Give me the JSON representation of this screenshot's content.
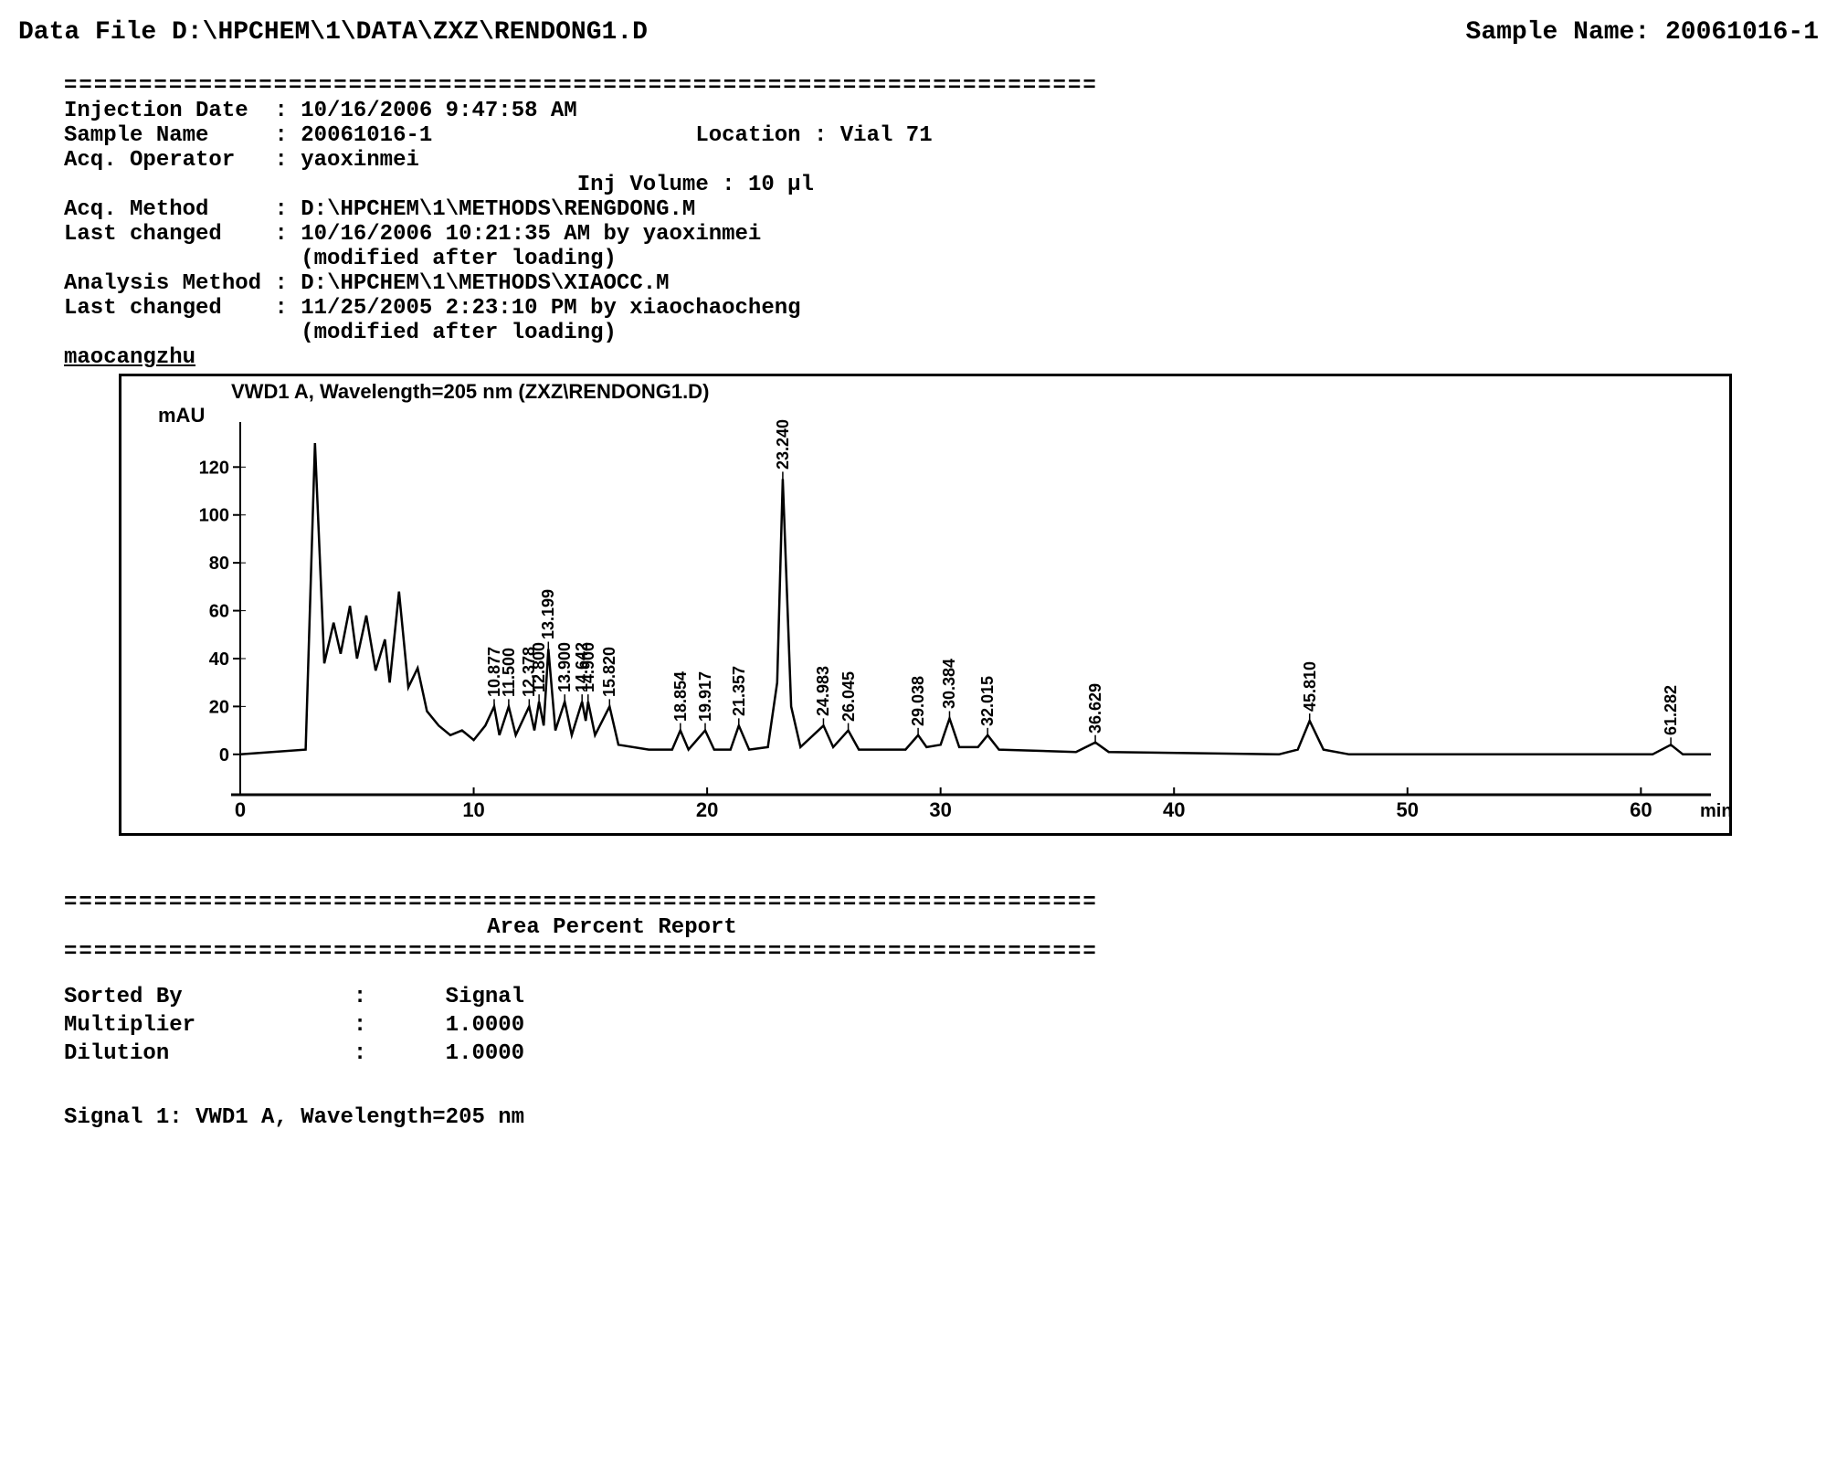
{
  "header": {
    "data_file_label": "Data File",
    "data_file": "D:\\HPCHEM\\1\\DATA\\ZXZ\\RENDONG1.D",
    "sample_name_label": "Sample Name:",
    "sample_name": "20061016-1"
  },
  "meta": {
    "injection_date_label": "Injection Date",
    "injection_date": "10/16/2006 9:47:58 AM",
    "sample_name_label": "Sample Name",
    "sample_name": "20061016-1",
    "location_label": "Location :",
    "location": "Vial 71",
    "acq_operator_label": "Acq. Operator",
    "acq_operator": "yaoxinmei",
    "inj_volume_label": "Inj Volume :",
    "inj_volume": "10 µl",
    "acq_method_label": "Acq. Method",
    "acq_method": "D:\\HPCHEM\\1\\METHODS\\RENGDONG.M",
    "last_changed_label": "Last changed",
    "last_changed_acq": "10/16/2006 10:21:35 AM by yaoxinmei",
    "modified_note": "(modified after loading)",
    "analysis_method_label": "Analysis Method",
    "analysis_method": "D:\\HPCHEM\\1\\METHODS\\XIAOCC.M",
    "last_changed_anl": "11/25/2005 2:23:10 PM by xiaochaocheng",
    "footer_tag": "maocangzhu"
  },
  "chart": {
    "title": "VWD1 A, Wavelength=205 nm (ZXZ\\RENDONG1.D)",
    "y_unit": "mAU",
    "x_unit": "min",
    "ylim": [
      -10,
      135
    ],
    "xlim": [
      0,
      63
    ],
    "yticks": [
      0,
      20,
      40,
      60,
      80,
      100,
      120
    ],
    "xticks": [
      0,
      10,
      20,
      30,
      40,
      50,
      60
    ],
    "line_color": "#000000",
    "background": "#ffffff",
    "border_color": "#000000",
    "peak_labels": [
      {
        "t": 10.877,
        "h": 20
      },
      {
        "t": 11.5,
        "h": 20
      },
      {
        "t": 12.378,
        "h": 20
      },
      {
        "t": 12.8,
        "h": 22
      },
      {
        "t": 13.199,
        "h": 44
      },
      {
        "t": 13.9,
        "h": 22
      },
      {
        "t": 14.642,
        "h": 22
      },
      {
        "t": 14.9,
        "h": 22
      },
      {
        "t": 15.82,
        "h": 20
      },
      {
        "t": 18.854,
        "h": 10
      },
      {
        "t": 19.917,
        "h": 10
      },
      {
        "t": 21.357,
        "h": 12
      },
      {
        "t": 23.24,
        "h": 115
      },
      {
        "t": 24.983,
        "h": 12
      },
      {
        "t": 26.045,
        "h": 10
      },
      {
        "t": 29.038,
        "h": 8
      },
      {
        "t": 30.384,
        "h": 15
      },
      {
        "t": 32.015,
        "h": 8
      },
      {
        "t": 36.629,
        "h": 5
      },
      {
        "t": 45.81,
        "h": 14
      },
      {
        "t": 61.282,
        "h": 4
      }
    ],
    "baseline": [
      {
        "t": 0,
        "y": 0
      },
      {
        "t": 2.8,
        "y": 2
      },
      {
        "t": 3.2,
        "y": 130
      },
      {
        "t": 3.6,
        "y": 38
      },
      {
        "t": 4.0,
        "y": 55
      },
      {
        "t": 4.3,
        "y": 42
      },
      {
        "t": 4.7,
        "y": 62
      },
      {
        "t": 5.0,
        "y": 40
      },
      {
        "t": 5.4,
        "y": 58
      },
      {
        "t": 5.8,
        "y": 35
      },
      {
        "t": 6.2,
        "y": 48
      },
      {
        "t": 6.4,
        "y": 30
      },
      {
        "t": 6.8,
        "y": 68
      },
      {
        "t": 7.2,
        "y": 28
      },
      {
        "t": 7.6,
        "y": 36
      },
      {
        "t": 8.0,
        "y": 18
      },
      {
        "t": 8.5,
        "y": 12
      },
      {
        "t": 9.0,
        "y": 8
      },
      {
        "t": 9.5,
        "y": 10
      },
      {
        "t": 10.0,
        "y": 6
      },
      {
        "t": 10.5,
        "y": 12
      },
      {
        "t": 10.877,
        "y": 20
      },
      {
        "t": 11.1,
        "y": 8
      },
      {
        "t": 11.5,
        "y": 20
      },
      {
        "t": 11.8,
        "y": 8
      },
      {
        "t": 12.378,
        "y": 20
      },
      {
        "t": 12.6,
        "y": 10
      },
      {
        "t": 12.8,
        "y": 22
      },
      {
        "t": 13.0,
        "y": 12
      },
      {
        "t": 13.199,
        "y": 44
      },
      {
        "t": 13.5,
        "y": 10
      },
      {
        "t": 13.9,
        "y": 22
      },
      {
        "t": 14.2,
        "y": 8
      },
      {
        "t": 14.642,
        "y": 22
      },
      {
        "t": 14.8,
        "y": 14
      },
      {
        "t": 14.9,
        "y": 22
      },
      {
        "t": 15.2,
        "y": 8
      },
      {
        "t": 15.82,
        "y": 20
      },
      {
        "t": 16.2,
        "y": 4
      },
      {
        "t": 17.5,
        "y": 2
      },
      {
        "t": 18.5,
        "y": 2
      },
      {
        "t": 18.854,
        "y": 10
      },
      {
        "t": 19.2,
        "y": 2
      },
      {
        "t": 19.917,
        "y": 10
      },
      {
        "t": 20.3,
        "y": 2
      },
      {
        "t": 21.0,
        "y": 2
      },
      {
        "t": 21.357,
        "y": 12
      },
      {
        "t": 21.8,
        "y": 2
      },
      {
        "t": 22.6,
        "y": 3
      },
      {
        "t": 23.0,
        "y": 30
      },
      {
        "t": 23.24,
        "y": 115
      },
      {
        "t": 23.6,
        "y": 20
      },
      {
        "t": 24.0,
        "y": 3
      },
      {
        "t": 24.983,
        "y": 12
      },
      {
        "t": 25.4,
        "y": 3
      },
      {
        "t": 26.045,
        "y": 10
      },
      {
        "t": 26.5,
        "y": 2
      },
      {
        "t": 28.5,
        "y": 2
      },
      {
        "t": 29.038,
        "y": 8
      },
      {
        "t": 29.4,
        "y": 3
      },
      {
        "t": 30.0,
        "y": 4
      },
      {
        "t": 30.384,
        "y": 15
      },
      {
        "t": 30.8,
        "y": 3
      },
      {
        "t": 31.6,
        "y": 3
      },
      {
        "t": 32.015,
        "y": 8
      },
      {
        "t": 32.5,
        "y": 2
      },
      {
        "t": 35.8,
        "y": 1
      },
      {
        "t": 36.629,
        "y": 5
      },
      {
        "t": 37.2,
        "y": 1
      },
      {
        "t": 44.5,
        "y": 0
      },
      {
        "t": 45.3,
        "y": 2
      },
      {
        "t": 45.81,
        "y": 14
      },
      {
        "t": 46.4,
        "y": 2
      },
      {
        "t": 47.5,
        "y": 0
      },
      {
        "t": 60.5,
        "y": 0
      },
      {
        "t": 61.282,
        "y": 4
      },
      {
        "t": 61.8,
        "y": 0
      },
      {
        "t": 63.0,
        "y": 0
      }
    ]
  },
  "report": {
    "title": "Area Percent Report",
    "sorted_by_label": "Sorted By",
    "sorted_by": "Signal",
    "multiplier_label": "Multiplier",
    "multiplier": "1.0000",
    "dilution_label": "Dilution",
    "dilution": "1.0000",
    "signal_line": "Signal 1: VWD1 A, Wavelength=205 nm"
  },
  "divider": "====================================================================="
}
